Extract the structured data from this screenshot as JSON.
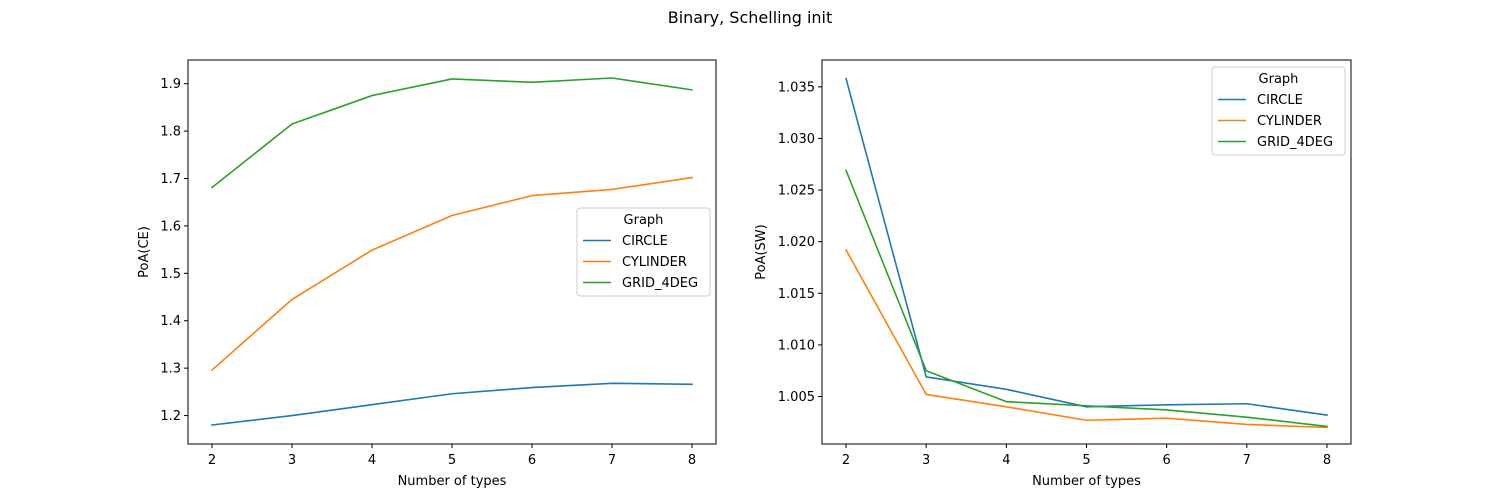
{
  "title": "Binary, Schelling init",
  "chart_data": [
    {
      "type": "line",
      "xlabel": "Number of types",
      "ylabel": "PoA(CE)",
      "x": [
        2,
        3,
        4,
        5,
        6,
        7,
        8
      ],
      "xlim": [
        1.7,
        8.3
      ],
      "ylim": [
        1.14,
        1.95
      ],
      "xticks": [
        "2",
        "3",
        "4",
        "5",
        "6",
        "7",
        "8"
      ],
      "yticks": [
        "1.2",
        "1.3",
        "1.4",
        "1.5",
        "1.6",
        "1.7",
        "1.8",
        "1.9"
      ],
      "legend": {
        "title": "Graph",
        "placement": "center-right"
      },
      "series": [
        {
          "name": "CIRCLE",
          "color": "#1f77b4",
          "values": [
            1.18,
            1.2,
            1.223,
            1.246,
            1.259,
            1.268,
            1.266
          ]
        },
        {
          "name": "CYLINDER",
          "color": "#ff7f0e",
          "values": [
            1.296,
            1.445,
            1.549,
            1.622,
            1.664,
            1.677,
            1.702
          ]
        },
        {
          "name": "GRID_4DEG",
          "color": "#2ca02c",
          "values": [
            1.681,
            1.815,
            1.875,
            1.91,
            1.903,
            1.912,
            1.887
          ]
        }
      ]
    },
    {
      "type": "line",
      "xlabel": "Number of types",
      "ylabel": "PoA(SW)",
      "x": [
        2,
        3,
        4,
        5,
        6,
        7,
        8
      ],
      "xlim": [
        1.7,
        8.3
      ],
      "ylim": [
        1.0004,
        1.0376
      ],
      "xticks": [
        "2",
        "3",
        "4",
        "5",
        "6",
        "7",
        "8"
      ],
      "yticks": [
        "1.005",
        "1.010",
        "1.015",
        "1.020",
        "1.025",
        "1.030",
        "1.035"
      ],
      "legend": {
        "title": "Graph",
        "placement": "top-right"
      },
      "series": [
        {
          "name": "CIRCLE",
          "color": "#1f77b4",
          "values": [
            1.0358,
            1.0069,
            1.0057,
            1.004,
            1.0042,
            1.0043,
            1.0032
          ]
        },
        {
          "name": "CYLINDER",
          "color": "#ff7f0e",
          "values": [
            1.0192,
            1.0052,
            1.004,
            1.0027,
            1.0029,
            1.0023,
            1.002
          ]
        },
        {
          "name": "GRID_4DEG",
          "color": "#2ca02c",
          "values": [
            1.0269,
            1.0075,
            1.0045,
            1.0041,
            1.0037,
            1.003,
            1.0021
          ]
        }
      ]
    }
  ]
}
